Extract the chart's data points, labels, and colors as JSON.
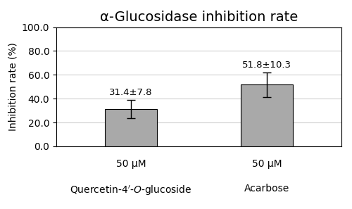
{
  "title": "α-Glucosidase inhibition rate",
  "ylabel": "Inhibition rate (%)",
  "conc_labels": [
    "50 μM",
    "50 μM"
  ],
  "compound_labels": [
    "Quercetin-4’-O-glucoside",
    "Acarbose"
  ],
  "values": [
    31.4,
    51.8
  ],
  "errors": [
    7.8,
    10.3
  ],
  "bar_annotations": [
    "31.4±7.8",
    "51.8±10.3"
  ],
  "bar_color": "#a9a9a9",
  "ylim": [
    0,
    100
  ],
  "yticks": [
    0.0,
    20.0,
    40.0,
    60.0,
    80.0,
    100.0
  ],
  "title_fontsize": 14,
  "label_fontsize": 10,
  "tick_fontsize": 10,
  "annotation_fontsize": 9.5,
  "xlabel_fontsize": 10,
  "bar_width": 0.38,
  "background_color": "#ffffff",
  "grid_color": "#d0d0d0",
  "border_color": "#000000"
}
